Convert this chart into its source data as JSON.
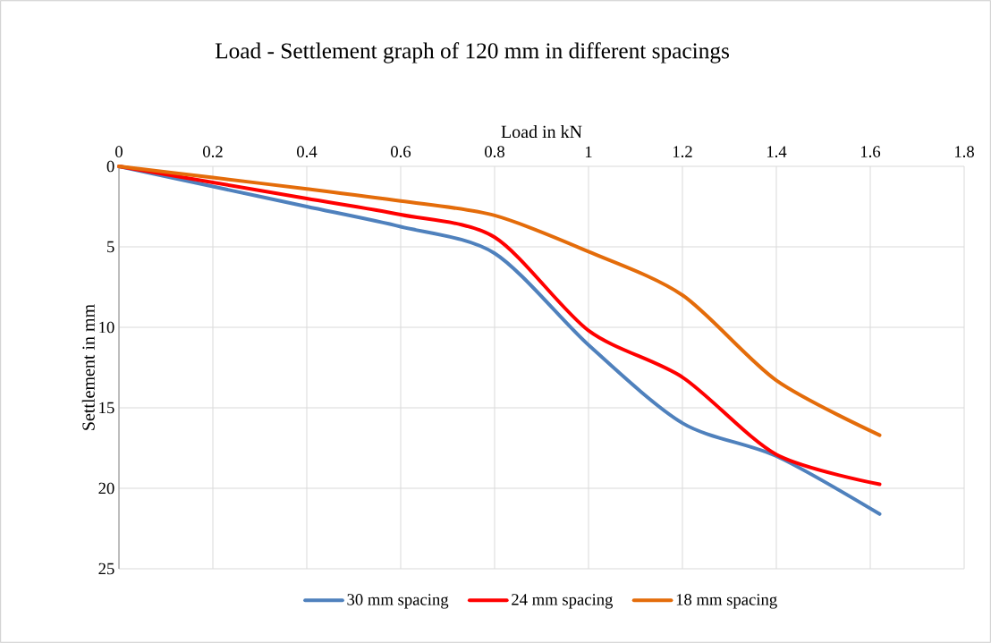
{
  "chart_data": {
    "type": "line",
    "title": "Load - Settlement graph of 120 mm in different spacings",
    "xlabel": "Load in kN",
    "ylabel": "Settlement in mm",
    "x": [
      0,
      0.2,
      0.4,
      0.6,
      0.8,
      1.0,
      1.2,
      1.4,
      1.62
    ],
    "series": [
      {
        "name": "30 mm spacing",
        "color": "#4f81bd",
        "values": [
          0,
          1.25,
          2.5,
          3.75,
          5.4,
          11.1,
          15.95,
          18.0,
          21.6
        ]
      },
      {
        "name": "24 mm spacing",
        "color": "#ff0000",
        "values": [
          0,
          1.0,
          2.0,
          3.0,
          4.4,
          10.2,
          13.1,
          17.9,
          19.75
        ]
      },
      {
        "name": "18 mm spacing",
        "color": "#e46c0a",
        "values": [
          0,
          0.7,
          1.4,
          2.15,
          3.05,
          5.3,
          8.0,
          13.3,
          16.7
        ]
      }
    ],
    "xlim": [
      0,
      1.8
    ],
    "xticks": [
      0,
      0.2,
      0.4,
      0.6,
      0.8,
      1,
      1.2,
      1.4,
      1.6,
      1.8
    ],
    "ylim": [
      25,
      0
    ],
    "yticks": [
      0,
      5,
      10,
      15,
      20,
      25
    ],
    "grid": true,
    "legend": "bottom",
    "marker": "none",
    "line_style": "solid"
  }
}
